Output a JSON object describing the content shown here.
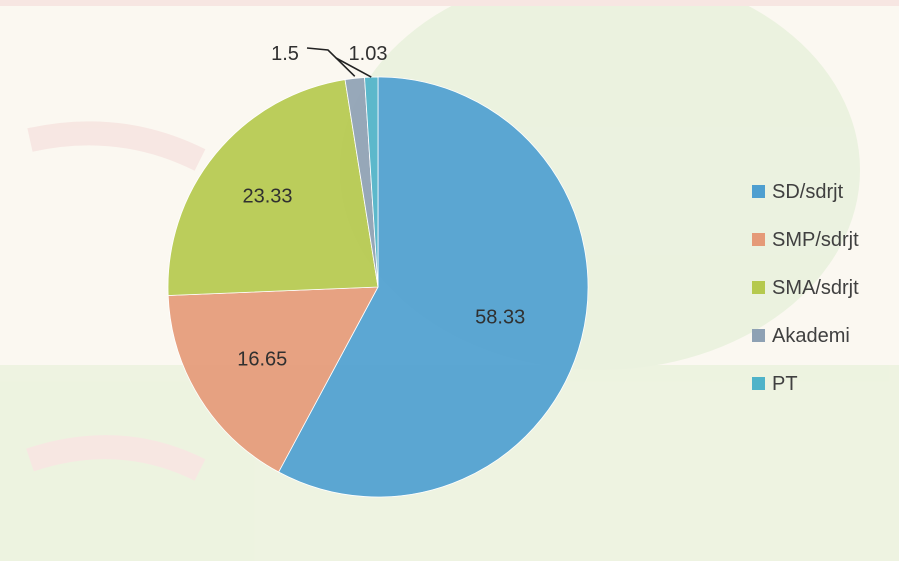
{
  "chart_data": {
    "type": "pie",
    "categories": [
      "SD/sdrjt",
      "SMP/sdrjt",
      "SMA/sdrjt",
      "Akademi",
      "PT"
    ],
    "values": [
      58.33,
      16.65,
      23.33,
      1.5,
      1.03
    ],
    "data_labels": [
      "58.33",
      "16.65",
      "23.33",
      "1.5",
      "1.03"
    ],
    "colors": [
      "#4e9fd0",
      "#e59a78",
      "#b5c94e",
      "#8ea1b4",
      "#4fb3c9"
    ],
    "start_angle_deg": 0,
    "direction": "clockwise",
    "legend_position": "right"
  }
}
